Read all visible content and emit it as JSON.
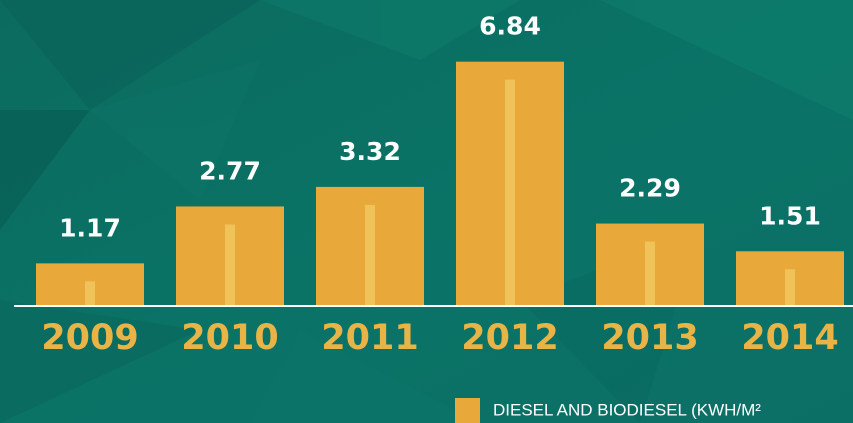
{
  "chart_data": {
    "type": "bar",
    "categories": [
      "2009",
      "2010",
      "2011",
      "2012",
      "2013",
      "2014"
    ],
    "values": [
      1.17,
      2.77,
      3.32,
      6.84,
      2.29,
      1.51
    ],
    "color": "#e9a93a",
    "ylim": [
      0,
      7
    ],
    "legend": {
      "label": "DIESEL AND BIODIESEL (KWH/M²",
      "position": "bottom-right"
    }
  }
}
